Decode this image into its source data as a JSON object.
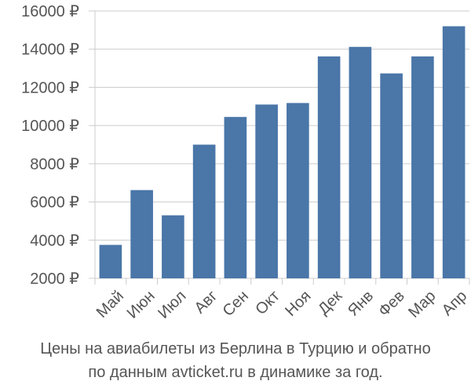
{
  "caption": {
    "line1": "Цены на авиабилеты из Берлина в Турцию и обратно",
    "line2": "по данным avticket.ru в динамике за год."
  },
  "chart_data": {
    "type": "bar",
    "categories": [
      "Май",
      "Июн",
      "Июл",
      "Авг",
      "Сен",
      "Окт",
      "Ноя",
      "Дек",
      "Янв",
      "Фев",
      "Мар",
      "Апр"
    ],
    "values": [
      3750,
      6620,
      5300,
      9000,
      10450,
      11100,
      11180,
      13620,
      14120,
      12730,
      13620,
      15200
    ],
    "ylim": [
      2000,
      16000
    ],
    "yticks": [
      2000,
      4000,
      6000,
      8000,
      10000,
      12000,
      14000,
      16000
    ],
    "ytick_labels": [
      "2000 ₽",
      "4000 ₽",
      "6000 ₽",
      "8000 ₽",
      "10000 ₽",
      "12000 ₽",
      "14000 ₽",
      "16000 ₽"
    ],
    "grid": true,
    "bar_color": "#4a76a8",
    "grid_color": "#cccccc"
  }
}
